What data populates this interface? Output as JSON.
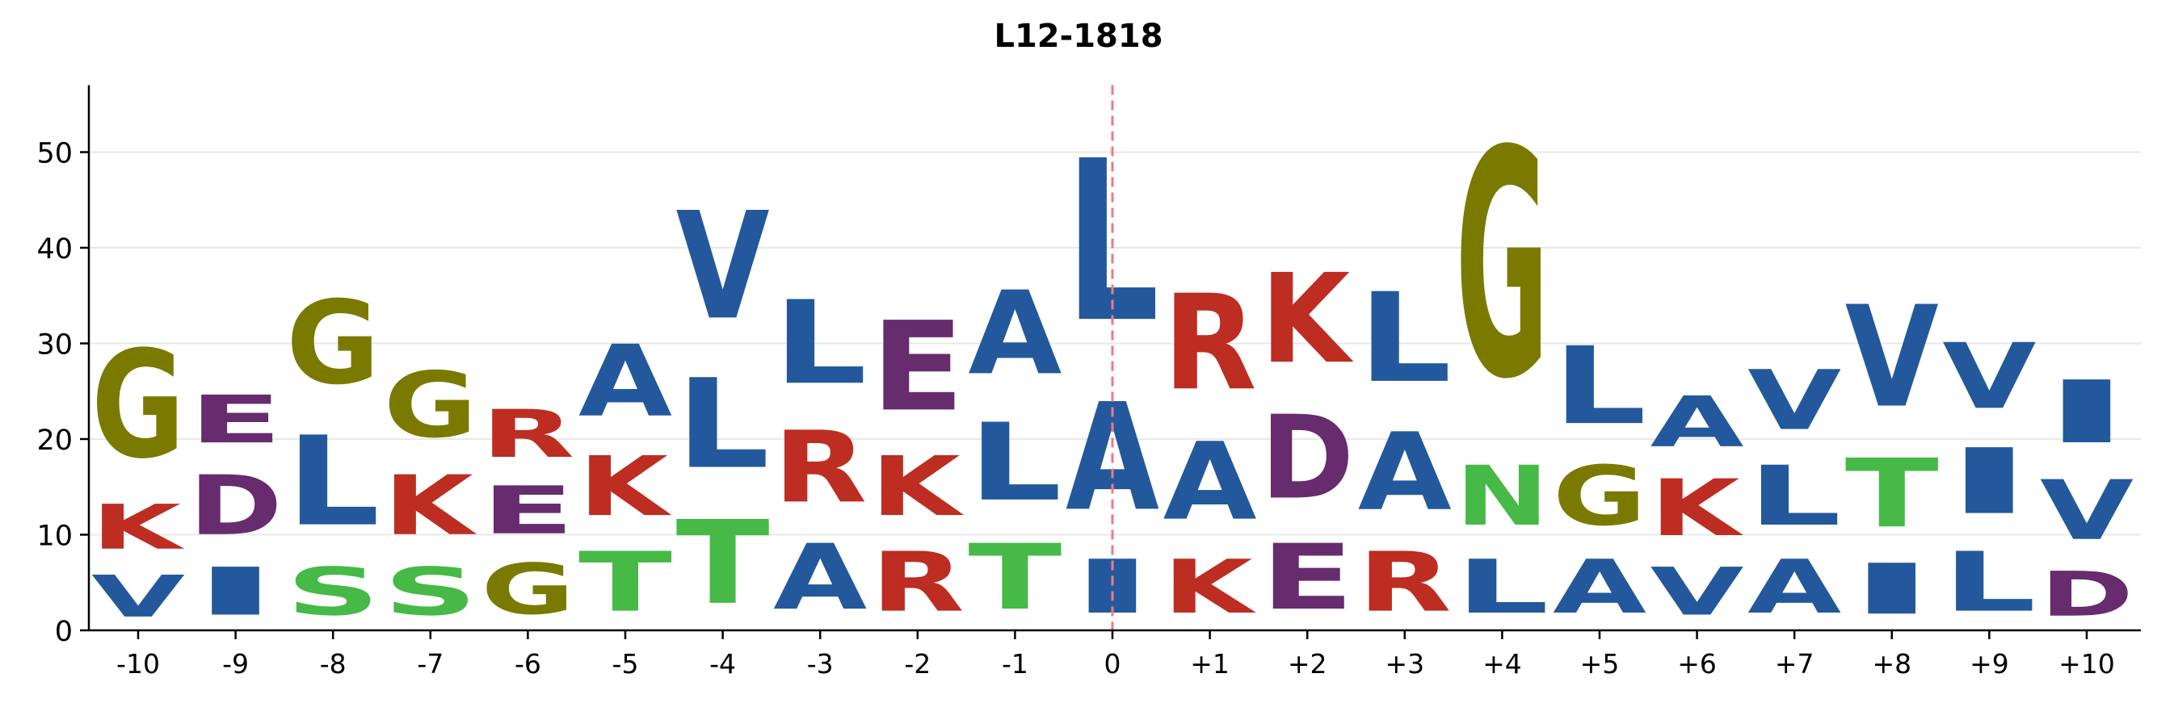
{
  "chart_data": {
    "type": "sequence-logo",
    "title": "L12-1818",
    "xlabel": "",
    "ylabel": "",
    "ylim": [
      0,
      57
    ],
    "yticks": [
      0,
      10,
      20,
      30,
      40,
      50
    ],
    "grid": "horizontal",
    "reference_line": {
      "position": "0",
      "style": "dashed",
      "color": "#f07a80"
    },
    "colors": {
      "hydrophobic": "#23599c",
      "basic": "#bd2d22",
      "acidic": "#672c6d",
      "gly": "#7b7a00",
      "polar": "#46b947"
    },
    "positions": [
      {
        "label": "-10",
        "letters": [
          {
            "letter": "V",
            "value": 7
          },
          {
            "letter": "K",
            "value": 7.5
          },
          {
            "letter": "G",
            "value": 18
          }
        ]
      },
      {
        "label": "-9",
        "letters": [
          {
            "letter": "I",
            "value": 8
          },
          {
            "letter": "D",
            "value": 10
          },
          {
            "letter": "E",
            "value": 8
          }
        ]
      },
      {
        "label": "-8",
        "letters": [
          {
            "letter": "S",
            "value": 8
          },
          {
            "letter": "L",
            "value": 15
          },
          {
            "letter": "G",
            "value": 14
          }
        ]
      },
      {
        "label": "-7",
        "letters": [
          {
            "letter": "S",
            "value": 8
          },
          {
            "letter": "K",
            "value": 10
          },
          {
            "letter": "G",
            "value": 11
          }
        ]
      },
      {
        "label": "-6",
        "letters": [
          {
            "letter": "G",
            "value": 8.5
          },
          {
            "letter": "E",
            "value": 8
          },
          {
            "letter": "R",
            "value": 8
          }
        ]
      },
      {
        "label": "-5",
        "letters": [
          {
            "letter": "T",
            "value": 10
          },
          {
            "letter": "K",
            "value": 10
          },
          {
            "letter": "A",
            "value": 12
          }
        ]
      },
      {
        "label": "-4",
        "letters": [
          {
            "letter": "T",
            "value": 14
          },
          {
            "letter": "L",
            "value": 15
          },
          {
            "letter": "V",
            "value": 18
          }
        ]
      },
      {
        "label": "-3",
        "letters": [
          {
            "letter": "A",
            "value": 11
          },
          {
            "letter": "R",
            "value": 12
          },
          {
            "letter": "L",
            "value": 14
          }
        ]
      },
      {
        "label": "-2",
        "letters": [
          {
            "letter": "R",
            "value": 10
          },
          {
            "letter": "K",
            "value": 10
          },
          {
            "letter": "E",
            "value": 15
          }
        ]
      },
      {
        "label": "-1",
        "letters": [
          {
            "letter": "T",
            "value": 11
          },
          {
            "letter": "L",
            "value": 13
          },
          {
            "letter": "A",
            "value": 14
          }
        ]
      },
      {
        "label": "0",
        "letters": [
          {
            "letter": "I",
            "value": 9
          },
          {
            "letter": "A",
            "value": 18
          },
          {
            "letter": "L",
            "value": 27
          }
        ]
      },
      {
        "label": "+1",
        "letters": [
          {
            "letter": "K",
            "value": 9
          },
          {
            "letter": "A",
            "value": 13
          },
          {
            "letter": "R",
            "value": 16
          }
        ]
      },
      {
        "label": "+2",
        "letters": [
          {
            "letter": "E",
            "value": 11
          },
          {
            "letter": "D",
            "value": 14
          },
          {
            "letter": "K",
            "value": 15
          }
        ]
      },
      {
        "label": "+3",
        "letters": [
          {
            "letter": "R",
            "value": 10
          },
          {
            "letter": "A",
            "value": 13
          },
          {
            "letter": "L",
            "value": 15
          }
        ]
      },
      {
        "label": "+4",
        "letters": [
          {
            "letter": "L",
            "value": 9
          },
          {
            "letter": "N",
            "value": 10
          },
          {
            "letter": "G",
            "value": 38
          }
        ]
      },
      {
        "label": "+5",
        "letters": [
          {
            "letter": "A",
            "value": 9
          },
          {
            "letter": "G",
            "value": 10
          },
          {
            "letter": "L",
            "value": 13
          }
        ]
      },
      {
        "label": "+6",
        "letters": [
          {
            "letter": "V",
            "value": 8
          },
          {
            "letter": "K",
            "value": 9.5
          },
          {
            "letter": "A",
            "value": 8.5
          }
        ]
      },
      {
        "label": "+7",
        "letters": [
          {
            "letter": "A",
            "value": 9
          },
          {
            "letter": "L",
            "value": 10
          },
          {
            "letter": "V",
            "value": 10
          }
        ]
      },
      {
        "label": "+8",
        "letters": [
          {
            "letter": "I",
            "value": 8.5
          },
          {
            "letter": "T",
            "value": 11.5
          },
          {
            "letter": "V",
            "value": 17
          }
        ]
      },
      {
        "label": "+9",
        "letters": [
          {
            "letter": "L",
            "value": 10
          },
          {
            "letter": "I",
            "value": 11
          },
          {
            "letter": "V",
            "value": 11
          }
        ]
      },
      {
        "label": "+10",
        "letters": [
          {
            "letter": "D",
            "value": 7.5
          },
          {
            "letter": "V",
            "value": 10
          },
          {
            "letter": "I",
            "value": 10.5
          }
        ]
      }
    ]
  }
}
